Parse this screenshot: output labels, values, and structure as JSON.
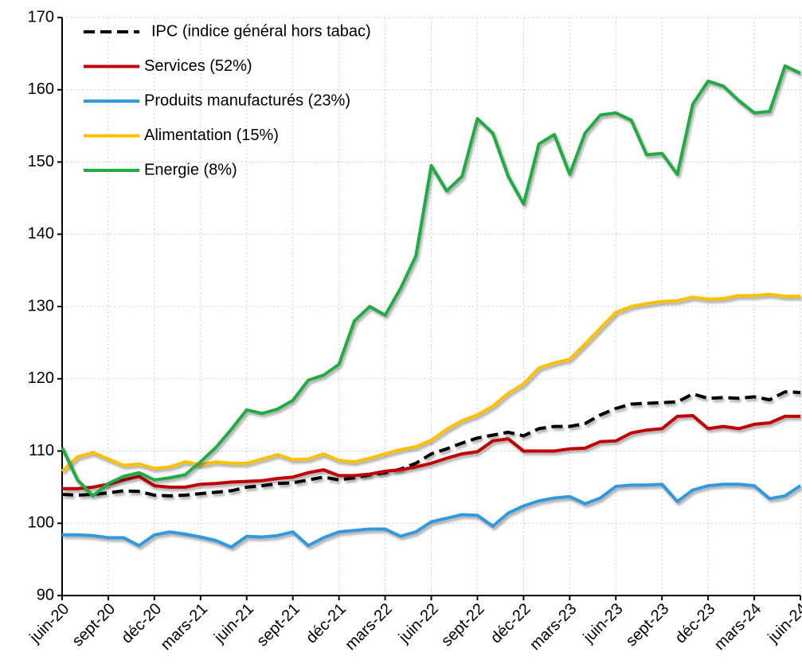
{
  "chart_data": {
    "type": "line",
    "categories": [
      "juin-20",
      null,
      null,
      "sept-20",
      null,
      null,
      "déc-20",
      null,
      null,
      "mars-21",
      null,
      null,
      "juin-21",
      null,
      null,
      "sept-21",
      null,
      null,
      "déc-21",
      null,
      null,
      "mars-22",
      null,
      null,
      "juin-22",
      null,
      null,
      "sept-22",
      null,
      null,
      "déc-22",
      null,
      null,
      "mars-23",
      null,
      null,
      "juin-23",
      null,
      null,
      "sept-23",
      null,
      null,
      "déc-23",
      null,
      null,
      "mars-24",
      null,
      null,
      "juin-24"
    ],
    "series": [
      {
        "name": "IPC (indice général hors tabac)",
        "color": "#000000",
        "dash": true,
        "values": [
          104,
          103.9,
          104,
          104.2,
          104.5,
          104.4,
          103.9,
          103.8,
          103.9,
          104.1,
          104.3,
          104.5,
          105,
          105.2,
          105.5,
          105.6,
          106,
          106.4,
          106,
          106.3,
          106.7,
          107,
          107.5,
          108.3,
          109.6,
          110.3,
          111.1,
          111.8,
          112.2,
          112.6,
          112.1,
          113.1,
          113.4,
          113.4,
          113.8,
          115,
          115.9,
          116.5,
          116.6,
          116.7,
          116.8,
          117.9,
          117.3,
          117.4,
          117.3,
          117.5,
          117.1,
          118.2,
          118.1
        ]
      },
      {
        "name": "Services (52%)",
        "color": "#c00000",
        "values": [
          104.8,
          104.8,
          105,
          105.4,
          106,
          106.5,
          105.2,
          105,
          105,
          105.4,
          105.5,
          105.7,
          105.8,
          105.9,
          106.2,
          106.4,
          107,
          107.4,
          106.6,
          106.6,
          106.8,
          107.2,
          107.4,
          107.8,
          108.3,
          109,
          109.6,
          109.9,
          111.4,
          111.7,
          110,
          110,
          110,
          110.3,
          110.4,
          111.3,
          111.4,
          112.5,
          112.9,
          113.1,
          114.8,
          114.9,
          113.1,
          113.4,
          113.1,
          113.7,
          113.9,
          114.8,
          114.8
        ]
      },
      {
        "name": "Produits manufacturés (23%)",
        "color": "#3399dd",
        "values": [
          98.4,
          98.4,
          98.3,
          98,
          98,
          96.9,
          98.4,
          98.8,
          98.5,
          98.1,
          97.6,
          96.7,
          98.2,
          98.1,
          98.3,
          98.8,
          96.9,
          98,
          98.8,
          99,
          99.2,
          99.2,
          98.2,
          98.8,
          100.2,
          100.7,
          101.2,
          101.1,
          99.6,
          101.4,
          102.4,
          103.1,
          103.5,
          103.7,
          102.7,
          103.5,
          105.1,
          105.3,
          105.3,
          105.4,
          103,
          104.6,
          105.2,
          105.4,
          105.4,
          105.2,
          103.4,
          103.8,
          105.2
        ]
      },
      {
        "name": "Alimentation (15%)",
        "color": "#ffc000",
        "values": [
          107.2,
          109.2,
          109.8,
          108.9,
          108,
          108.2,
          107.6,
          107.8,
          108.5,
          108.1,
          108.5,
          108.3,
          108.3,
          108.9,
          109.5,
          108.8,
          108.9,
          109.6,
          108.7,
          108.5,
          109,
          109.6,
          110.2,
          110.6,
          111.5,
          113,
          114.2,
          115,
          116.2,
          118,
          119.3,
          121.5,
          122.2,
          122.7,
          124.8,
          127,
          129.2,
          130,
          130.4,
          130.7,
          130.8,
          131.3,
          131,
          131.1,
          131.5,
          131.5,
          131.7,
          131.4,
          131.4
        ]
      },
      {
        "name": "Energie (8%)",
        "color": "#22aa44",
        "values": [
          110.5,
          106,
          103.8,
          105.5,
          106.5,
          107,
          106,
          106.3,
          106.7,
          108.5,
          110.5,
          113,
          115.7,
          115.2,
          115.8,
          117,
          119.8,
          120.5,
          122,
          128,
          130,
          128.8,
          132.5,
          137,
          149.5,
          146,
          148,
          156,
          154,
          148,
          144.2,
          152.5,
          153.8,
          148.3,
          154,
          156.5,
          156.8,
          155.8,
          151,
          151.2,
          148.3,
          158,
          161.2,
          160.5,
          158.5,
          156.8,
          157,
          163.3,
          162.3
        ]
      }
    ],
    "ylim": [
      90,
      170
    ],
    "yticks": [
      90,
      100,
      110,
      120,
      130,
      140,
      150,
      160,
      170
    ],
    "grid": true,
    "legend": "upper left"
  }
}
